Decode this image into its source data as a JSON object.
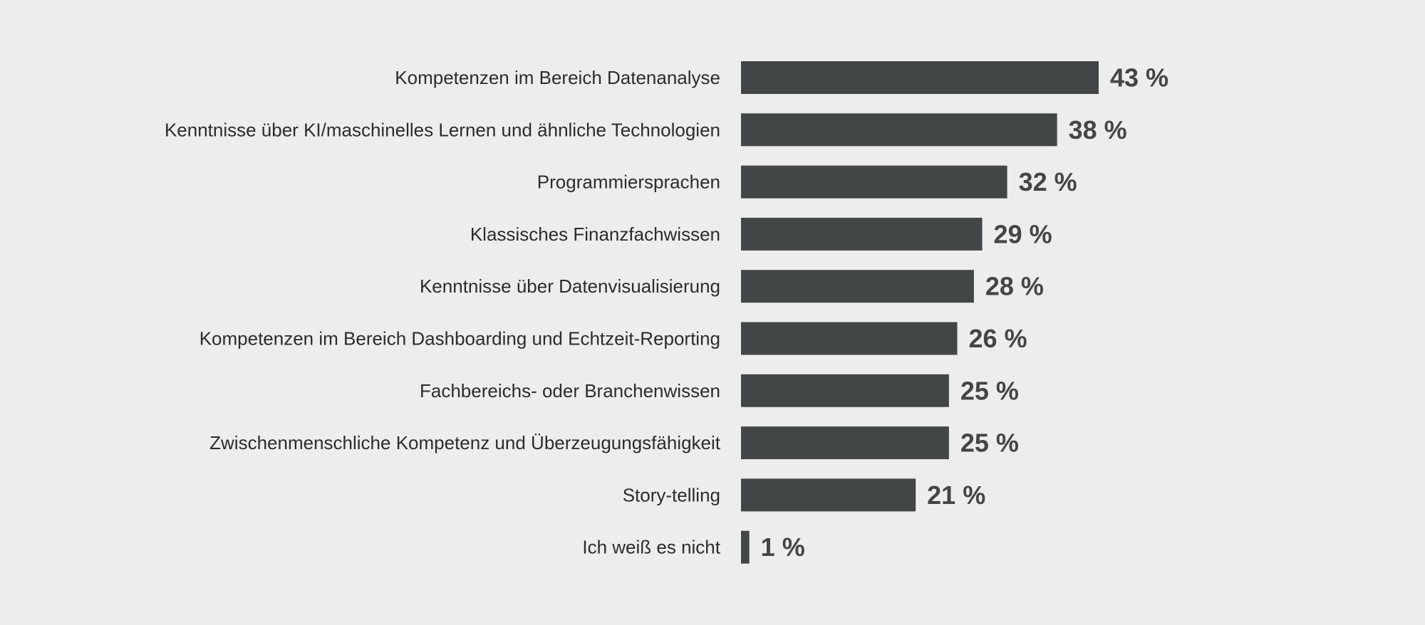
{
  "colors": {
    "background": "#eceeed",
    "bar": "#434646",
    "category_text": "#2b2d2d",
    "value_text": "#434646"
  },
  "chart_data": {
    "type": "bar",
    "orientation": "horizontal",
    "title": "",
    "xlabel": "",
    "ylabel": "",
    "unit": "%",
    "xlim": [
      0,
      43
    ],
    "grid": false,
    "legend": "none",
    "categories": [
      "Kompetenzen im Bereich Datenanalyse",
      "Kenntnisse über KI/maschinelles Lernen und ähnliche Technologien",
      "Programmiersprachen",
      "Klassisches Finanzfachwissen",
      "Kenntnisse über Datenvisualisierung",
      "Kompetenzen im Bereich Dashboarding und Echtzeit-Reporting",
      "Fachbereichs- oder Branchenwissen",
      "Zwischenmenschliche Kompetenz und Überzeugungsfähigkeit",
      "Story-telling",
      "Ich weiß es nicht"
    ],
    "values": [
      43,
      38,
      32,
      29,
      28,
      26,
      25,
      25,
      21,
      1
    ],
    "value_labels": [
      "43 %",
      "38 %",
      "32 %",
      "29 %",
      "28 %",
      "26 %",
      "25 %",
      "25 %",
      "21 %",
      "1 %"
    ]
  }
}
